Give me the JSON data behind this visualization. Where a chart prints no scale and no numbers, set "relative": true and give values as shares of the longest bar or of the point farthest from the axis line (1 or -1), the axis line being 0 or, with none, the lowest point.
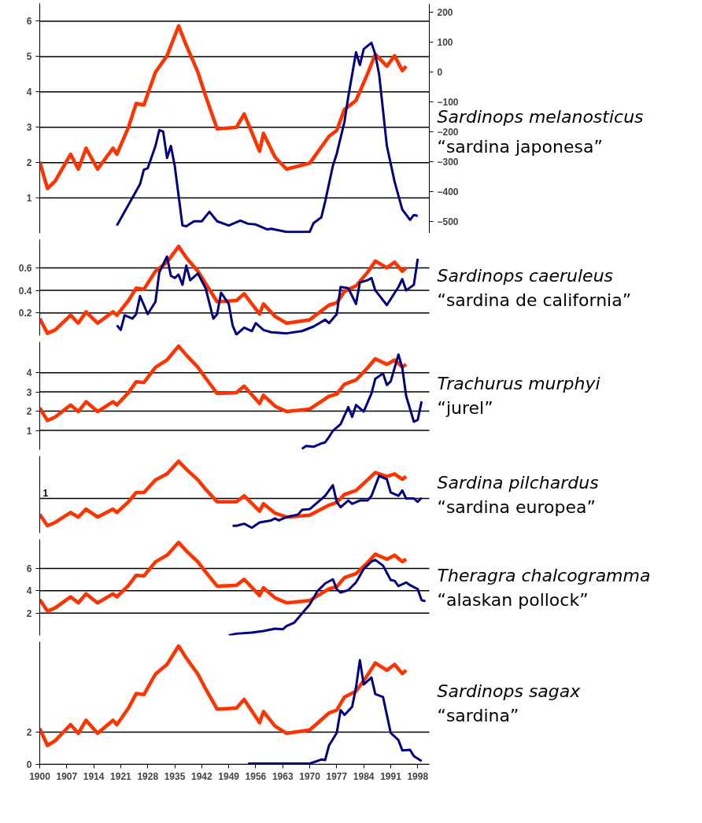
{
  "chart_data": [
    {
      "type": "line",
      "title": "Sardinops melanosticus",
      "subtitle": "“sardina japonesa”",
      "xlim": [
        1900,
        2001
      ],
      "ylim": [
        0,
        6.5
      ],
      "yticks": [
        1,
        2,
        3,
        4,
        5,
        6
      ],
      "y2lim": [
        -540,
        230
      ],
      "y2ticks": [
        -500,
        -400,
        -300,
        -200,
        -100,
        0,
        100,
        200
      ],
      "grid": "y",
      "tick_labels": "y",
      "series": [
        {
          "color": "#ff3300",
          "axis": "y2",
          "x": [
            1900,
            1902,
            1904,
            1908,
            1910,
            1912,
            1915,
            1919,
            1920,
            1923,
            1925,
            1927,
            1930,
            1933,
            1936,
            1938,
            1941,
            1943,
            1946,
            1951,
            1953,
            1957,
            1958,
            1961,
            1964,
            1970,
            1975,
            1977,
            1979,
            1982,
            1985,
            1987,
            1990,
            1992,
            1994,
            1995
          ],
          "values": [
            -300,
            -390,
            -365,
            -275,
            -325,
            -255,
            -325,
            -255,
            -275,
            -185,
            -105,
            -110,
            0,
            55,
            155,
            90,
            0,
            -80,
            -190,
            -185,
            -140,
            -265,
            -205,
            -285,
            -325,
            -305,
            -215,
            -195,
            -125,
            -95,
            -5,
            60,
            20,
            55,
            5,
            20
          ]
        },
        {
          "color": "#000080",
          "x": [
            1920,
            1926,
            1927,
            1928,
            1930,
            1931,
            1932,
            1933,
            1934,
            1935,
            1937,
            1938,
            1940,
            1942,
            1944,
            1946,
            1949,
            1952,
            1954,
            1956,
            1959,
            1960,
            1964,
            1970,
            1971,
            1973,
            1974,
            1976,
            1977,
            1979,
            1980,
            1982,
            1983,
            1984,
            1986,
            1987,
            1988,
            1990,
            1992,
            1994,
            1996,
            1997,
            1998
          ],
          "values": [
            0.22,
            1.39,
            1.8,
            1.84,
            2.47,
            2.92,
            2.88,
            2.13,
            2.47,
            1.91,
            0.22,
            0.2,
            0.34,
            0.34,
            0.61,
            0.34,
            0.22,
            0.36,
            0.27,
            0.25,
            0.11,
            0.13,
            0.04,
            0.04,
            0.29,
            0.45,
            0.9,
            1.91,
            2.25,
            3.15,
            3.87,
            5.12,
            4.76,
            5.21,
            5.39,
            5.06,
            4.49,
            2.47,
            1.46,
            0.67,
            0.38,
            0.52,
            0.49
          ]
        }
      ]
    },
    {
      "type": "line",
      "title": "Sardinops caeruleus",
      "subtitle": "“sardina de california”",
      "xlim": [
        1900,
        2001
      ],
      "ylim": [
        0,
        0.85
      ],
      "yticks": [
        0.2,
        0.4,
        0.6
      ],
      "grid": "y",
      "tick_labels": "y",
      "series": [
        {
          "color": "#ff3300",
          "x": [
            1900,
            1902,
            1904,
            1908,
            1910,
            1912,
            1915,
            1919,
            1920,
            1923,
            1925,
            1927,
            1930,
            1933,
            1936,
            1938,
            1941,
            1943,
            1946,
            1951,
            1953,
            1957,
            1958,
            1961,
            1964,
            1970,
            1975,
            1977,
            1979,
            1982,
            1985,
            1987,
            1990,
            1992,
            1994,
            1995
          ],
          "values": [
            0.15,
            0.02,
            0.05,
            0.18,
            0.11,
            0.21,
            0.11,
            0.21,
            0.18,
            0.31,
            0.42,
            0.41,
            0.57,
            0.65,
            0.79,
            0.69,
            0.57,
            0.46,
            0.3,
            0.31,
            0.37,
            0.19,
            0.28,
            0.17,
            0.11,
            0.14,
            0.27,
            0.29,
            0.39,
            0.44,
            0.56,
            0.66,
            0.6,
            0.65,
            0.57,
            0.6
          ]
        },
        {
          "color": "#000080",
          "x": [
            1920,
            1921,
            1922,
            1924,
            1925,
            1926,
            1928,
            1930,
            1931,
            1933,
            1934,
            1935,
            1936,
            1937,
            1938,
            1939,
            1941,
            1943,
            1945,
            1946,
            1947,
            1949,
            1950,
            1951,
            1953,
            1955,
            1956,
            1958,
            1960,
            1964,
            1968,
            1971,
            1974,
            1975,
            1977,
            1978,
            1980,
            1982,
            1983,
            1985,
            1986,
            1987,
            1990,
            1993,
            1994,
            1995,
            1997,
            1998
          ],
          "values": [
            0.09,
            0.05,
            0.18,
            0.15,
            0.19,
            0.35,
            0.19,
            0.3,
            0.56,
            0.7,
            0.53,
            0.51,
            0.54,
            0.45,
            0.62,
            0.49,
            0.55,
            0.42,
            0.15,
            0.19,
            0.38,
            0.28,
            0.09,
            0.01,
            0.07,
            0.04,
            0.11,
            0.05,
            0.03,
            0.02,
            0.04,
            0.08,
            0.14,
            0.11,
            0.19,
            0.43,
            0.42,
            0.28,
            0.47,
            0.49,
            0.51,
            0.4,
            0.27,
            0.43,
            0.5,
            0.4,
            0.45,
            0.68
          ]
        }
      ]
    },
    {
      "type": "line",
      "title": "Trachurus murphyi",
      "subtitle": "“jurel”",
      "xlim": [
        1900,
        2001
      ],
      "ylim": [
        0,
        5.6
      ],
      "yticks": [
        1,
        2,
        3,
        4
      ],
      "grid": "y",
      "tick_labels": "y",
      "series": [
        {
          "color": "#ff3300",
          "x": [
            1900,
            1902,
            1904,
            1908,
            1910,
            1912,
            1915,
            1919,
            1920,
            1923,
            1925,
            1927,
            1930,
            1933,
            1936,
            1938,
            1941,
            1943,
            1946,
            1951,
            1953,
            1957,
            1958,
            1961,
            1964,
            1970,
            1975,
            1977,
            1979,
            1982,
            1985,
            1987,
            1990,
            1992,
            1994,
            1995
          ],
          "values": [
            2.17,
            1.51,
            1.7,
            2.32,
            1.98,
            2.49,
            1.98,
            2.49,
            2.32,
            2.96,
            3.53,
            3.49,
            4.28,
            4.66,
            5.38,
            4.91,
            4.28,
            3.72,
            2.92,
            2.96,
            3.3,
            2.4,
            2.83,
            2.26,
            1.98,
            2.11,
            2.77,
            2.89,
            3.4,
            3.62,
            4.25,
            4.72,
            4.43,
            4.66,
            4.3,
            4.43
          ]
        },
        {
          "color": "#000080",
          "x": [
            1968,
            1969,
            1971,
            1973,
            1974,
            1975,
            1976,
            1978,
            1980,
            1981,
            1982,
            1984,
            1986,
            1987,
            1989,
            1990,
            1991,
            1993,
            1994,
            1995,
            1997,
            1998,
            1999
          ],
          "values": [
            0.04,
            0.19,
            0.15,
            0.32,
            0.38,
            0.66,
            0.98,
            1.32,
            2.21,
            1.7,
            2.32,
            1.98,
            2.92,
            3.68,
            3.96,
            3.36,
            3.55,
            4.94,
            4.25,
            2.79,
            1.45,
            1.55,
            2.51
          ]
        }
      ]
    },
    {
      "type": "line",
      "title": "Sardina pilchardus",
      "subtitle": "“sardina europea”",
      "xlim": [
        1900,
        2001
      ],
      "relative": true,
      "tick_labels": false,
      "ref_lines": [
        {
          "axis": "y",
          "value": 0.44
        }
      ],
      "annotations": [
        "1"
      ],
      "series": [
        {
          "color": "#ff3300",
          "x": [
            1900,
            1902,
            1904,
            1908,
            1910,
            1912,
            1915,
            1919,
            1920,
            1923,
            1925,
            1927,
            1930,
            1933,
            1936,
            1938,
            1941,
            1943,
            1946,
            1951,
            1953,
            1957,
            1958,
            1961,
            1964,
            1970,
            1975,
            1977,
            1979,
            1982,
            1985,
            1987,
            1990,
            1992,
            1994,
            1995
          ],
          "values": [
            0.2,
            0.03,
            0.08,
            0.23,
            0.16,
            0.28,
            0.16,
            0.28,
            0.23,
            0.39,
            0.53,
            0.53,
            0.72,
            0.81,
            1.0,
            0.88,
            0.72,
            0.58,
            0.39,
            0.39,
            0.48,
            0.25,
            0.36,
            0.22,
            0.16,
            0.19,
            0.34,
            0.38,
            0.5,
            0.56,
            0.72,
            0.83,
            0.77,
            0.81,
            0.73,
            0.77
          ]
        },
        {
          "color": "#000080",
          "x": [
            1950,
            1951,
            1953,
            1955,
            1957,
            1960,
            1961,
            1962,
            1964,
            1967,
            1968,
            1970,
            1972,
            1974,
            1976,
            1977,
            1978,
            1980,
            1981,
            1983,
            1985,
            1986,
            1988,
            1990,
            1991,
            1993,
            1994,
            1995,
            1997,
            1998,
            1999
          ],
          "values": [
            0.03,
            0.03,
            0.06,
            0,
            0.08,
            0.11,
            0.14,
            0.11,
            0.16,
            0.2,
            0.27,
            0.28,
            0.38,
            0.48,
            0.64,
            0.39,
            0.31,
            0.41,
            0.36,
            0.41,
            0.41,
            0.48,
            0.78,
            0.73,
            0.53,
            0.48,
            0.56,
            0.44,
            0.44,
            0.39,
            0.45
          ]
        }
      ]
    },
    {
      "type": "line",
      "title": "Theragra chalcogramma",
      "subtitle": "“alaskan pollock”",
      "xlim": [
        1900,
        2001
      ],
      "ylim": [
        0,
        8.6
      ],
      "yticks": [
        2,
        4,
        6
      ],
      "grid": "y",
      "tick_labels": "y",
      "series": [
        {
          "color": "#ff3300",
          "x": [
            1900,
            1902,
            1904,
            1908,
            1910,
            1912,
            1915,
            1919,
            1920,
            1923,
            1925,
            1927,
            1930,
            1933,
            1936,
            1938,
            1941,
            1943,
            1946,
            1951,
            1953,
            1957,
            1958,
            1961,
            1964,
            1970,
            1975,
            1977,
            1979,
            1982,
            1985,
            1987,
            1990,
            1992,
            1994,
            1995
          ],
          "values": [
            3.21,
            2.16,
            2.46,
            3.45,
            2.91,
            3.72,
            2.91,
            3.72,
            3.45,
            4.47,
            5.38,
            5.32,
            6.58,
            7.18,
            8.32,
            7.57,
            6.58,
            5.68,
            4.41,
            4.47,
            5.02,
            3.57,
            4.26,
            3.36,
            2.91,
            3.12,
            4.17,
            4.35,
            5.17,
            5.53,
            6.52,
            7.27,
            6.82,
            7.18,
            6.61,
            6.82
          ]
        },
        {
          "color": "#000080",
          "x": [
            1949,
            1951,
            1955,
            1958,
            1961,
            1963,
            1964,
            1966,
            1968,
            1970,
            1972,
            1974,
            1976,
            1977,
            1978,
            1980,
            1982,
            1984,
            1986,
            1987,
            1989,
            1991,
            1992,
            1993,
            1995,
            1996,
            1998,
            1999,
            2000
          ],
          "values": [
            0,
            0.15,
            0.24,
            0.39,
            0.6,
            0.54,
            0.84,
            1.14,
            1.95,
            2.76,
            3.96,
            4.65,
            5.02,
            4.14,
            3.84,
            4.05,
            4.74,
            5.95,
            6.61,
            6.76,
            6.25,
            4.95,
            4.89,
            4.41,
            4.74,
            4.5,
            4.14,
            3.15,
            3.06
          ]
        }
      ]
    },
    {
      "type": "line",
      "title": "Sardinops sagax",
      "subtitle": "“sardina”",
      "xlim": [
        1900,
        2001
      ],
      "xticks": [
        1900,
        1907,
        1914,
        1921,
        1928,
        1935,
        1942,
        1949,
        1956,
        1963,
        1970,
        1977,
        1984,
        1991,
        1998
      ],
      "ylim": [
        0,
        7.6
      ],
      "yticks": [
        0,
        2
      ],
      "grid": "y",
      "series": [
        {
          "color": "#ff3300",
          "x": [
            1900,
            1902,
            1904,
            1908,
            1910,
            1912,
            1915,
            1919,
            1920,
            1923,
            1925,
            1927,
            1930,
            1933,
            1936,
            1938,
            1941,
            1943,
            1946,
            1951,
            1953,
            1957,
            1958,
            1961,
            1964,
            1970,
            1975,
            1977,
            1979,
            1982,
            1985,
            1987,
            1990,
            1992,
            1994,
            1995
          ],
          "values": [
            2.22,
            1.17,
            1.47,
            2.46,
            1.92,
            2.73,
            1.92,
            2.73,
            2.46,
            3.48,
            4.38,
            4.32,
            5.59,
            6.19,
            7.33,
            6.58,
            5.59,
            4.68,
            3.42,
            3.48,
            4.02,
            2.58,
            3.27,
            2.37,
            1.92,
            2.13,
            3.18,
            3.36,
            4.17,
            4.53,
            5.53,
            6.28,
            5.83,
            6.19,
            5.62,
            5.83
          ]
        },
        {
          "color": "#000080",
          "x": [
            1954,
            1960,
            1965,
            1970,
            1973,
            1974,
            1975,
            1977,
            1978,
            1979,
            1981,
            1982,
            1983,
            1984,
            1986,
            1987,
            1989,
            1991,
            1993,
            1994,
            1996,
            1997,
            1999
          ],
          "values": [
            0.05,
            0.05,
            0.05,
            0.05,
            0.3,
            0.27,
            1.17,
            1.95,
            3.36,
            3.06,
            3.57,
            4.77,
            6.46,
            4.95,
            5.38,
            4.35,
            4.17,
            1.95,
            1.5,
            0.87,
            0.9,
            0.51,
            0.21
          ]
        }
      ]
    }
  ]
}
